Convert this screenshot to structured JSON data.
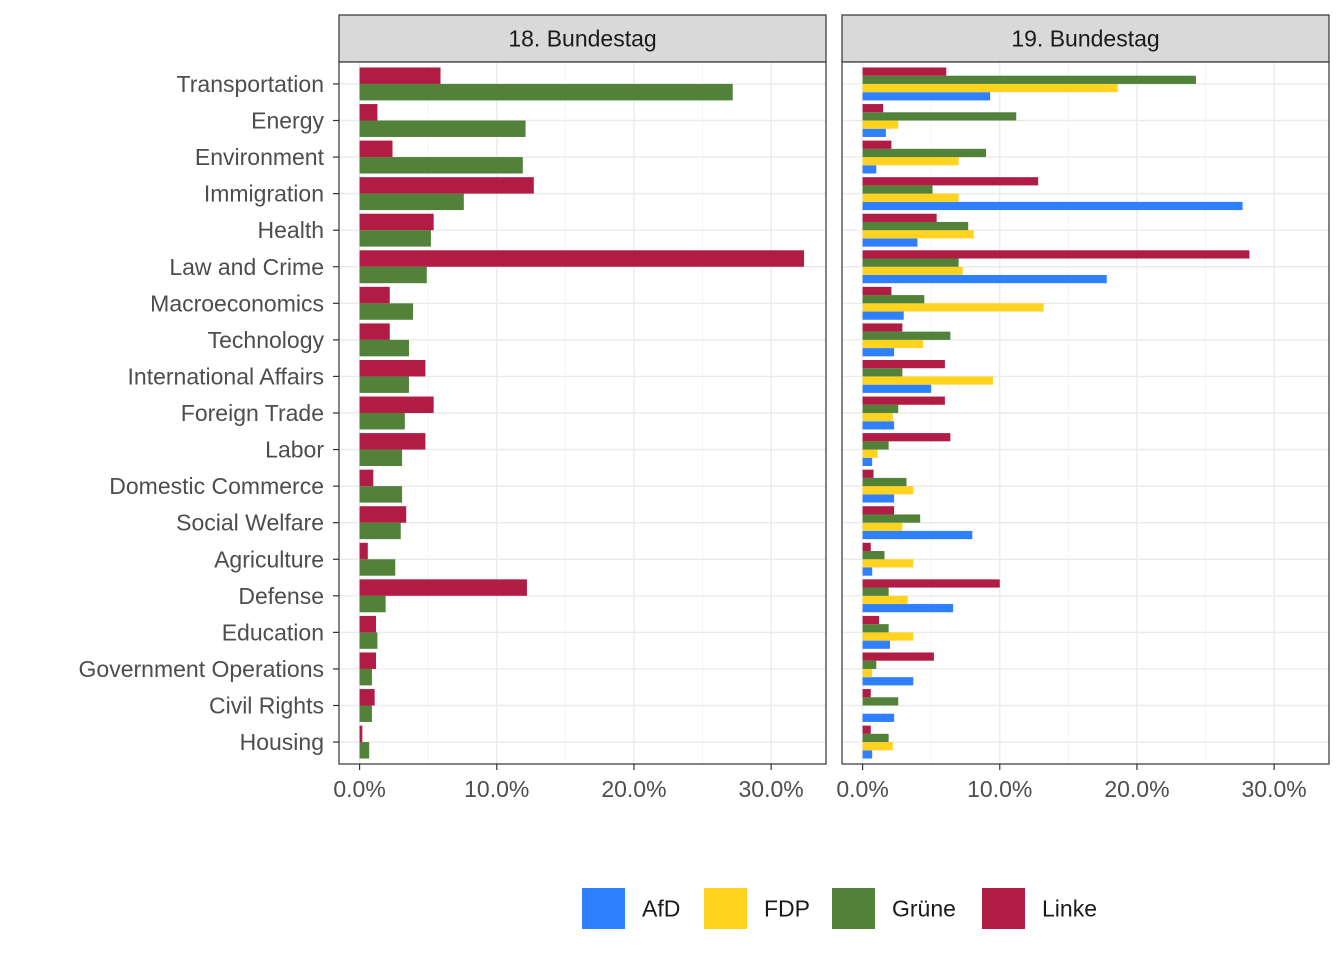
{
  "chart_data": {
    "type": "bar",
    "orientation": "horizontal",
    "facet_layout": "columns",
    "legend_position": "bottom",
    "grid": true,
    "xlim": [
      -0.015,
      0.34
    ],
    "x_ticks": [
      0,
      0.1,
      0.2,
      0.3
    ],
    "x_tick_labels": [
      "0.0%",
      "10.0%",
      "20.0%",
      "30.0%"
    ],
    "categories": [
      "Transportation",
      "Energy",
      "Environment",
      "Immigration",
      "Health",
      "Law and Crime",
      "Macroeconomics",
      "Technology",
      "International Affairs",
      "Foreign Trade",
      "Labor",
      "Domestic Commerce",
      "Social Welfare",
      "Agriculture",
      "Defense",
      "Education",
      "Government Operations",
      "Civil Rights",
      "Housing"
    ],
    "legend": [
      {
        "name": "AfD",
        "color": "#2F80FF"
      },
      {
        "name": "FDP",
        "color": "#FFD31F"
      },
      {
        "name": "Grüne",
        "color": "#52813A"
      },
      {
        "name": "Linke",
        "color": "#B01C44"
      }
    ],
    "panels": [
      {
        "title": "18. Bundestag",
        "series": [
          {
            "name": "Grüne",
            "color": "#52813A",
            "values": [
              0.272,
              0.121,
              0.119,
              0.076,
              0.052,
              0.049,
              0.039,
              0.036,
              0.036,
              0.033,
              0.031,
              0.031,
              0.03,
              0.026,
              0.019,
              0.013,
              0.009,
              0.009,
              0.007
            ]
          },
          {
            "name": "Linke",
            "color": "#B01C44",
            "values": [
              0.059,
              0.013,
              0.024,
              0.127,
              0.054,
              0.324,
              0.022,
              0.022,
              0.048,
              0.054,
              0.048,
              0.01,
              0.034,
              0.006,
              0.122,
              0.012,
              0.012,
              0.011,
              0.002
            ]
          }
        ]
      },
      {
        "title": "19. Bundestag",
        "series": [
          {
            "name": "AfD",
            "color": "#2F80FF",
            "values": [
              0.093,
              0.017,
              0.01,
              0.277,
              0.04,
              0.178,
              0.03,
              0.023,
              0.05,
              0.023,
              0.007,
              0.023,
              0.08,
              0.007,
              0.066,
              0.02,
              0.037,
              0.023,
              0.007
            ]
          },
          {
            "name": "FDP",
            "color": "#FFD31F",
            "values": [
              0.186,
              0.026,
              0.07,
              0.07,
              0.081,
              0.073,
              0.132,
              0.044,
              0.095,
              0.022,
              0.011,
              0.037,
              0.029,
              0.037,
              0.033,
              0.037,
              0.007,
              0.0,
              0.022
            ]
          },
          {
            "name": "Grüne",
            "color": "#52813A",
            "values": [
              0.243,
              0.112,
              0.09,
              0.051,
              0.077,
              0.07,
              0.045,
              0.064,
              0.029,
              0.026,
              0.019,
              0.032,
              0.042,
              0.016,
              0.019,
              0.019,
              0.01,
              0.026,
              0.019
            ]
          },
          {
            "name": "Linke",
            "color": "#B01C44",
            "values": [
              0.061,
              0.015,
              0.021,
              0.128,
              0.054,
              0.282,
              0.021,
              0.029,
              0.06,
              0.06,
              0.064,
              0.008,
              0.023,
              0.006,
              0.1,
              0.012,
              0.052,
              0.006,
              0.006
            ]
          }
        ]
      }
    ]
  }
}
